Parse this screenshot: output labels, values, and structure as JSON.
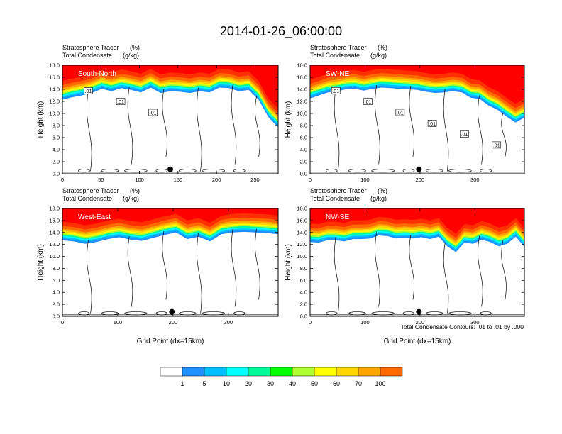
{
  "title": "2014-01-26_06:00:00",
  "footnote": "Total Condensate Contours: .01 to .01 by .000",
  "colors": {
    "colorbar": [
      "#ffffff",
      "#1e90ff",
      "#00bfff",
      "#00ffff",
      "#00fa9a",
      "#00ff00",
      "#adff2f",
      "#ffff00",
      "#ffd700",
      "#ffa500",
      "#ff6a00",
      "#ff3000",
      "#ff0000"
    ],
    "contour": "#000000",
    "marker": "#000000"
  },
  "colorbar_labels": [
    "1",
    "5",
    "10",
    "20",
    "30",
    "40",
    "50",
    "60",
    "70",
    "100"
  ],
  "chart_data": [
    {
      "type": "heatmap",
      "panel": "South-North",
      "subtitle_left": "Stratosphere Tracer",
      "subtitle_left2": "Total Condensate",
      "unit1": "(%)",
      "unit2": "(g/kg)",
      "ylabel": "Height (km)",
      "xlabel": "",
      "xlim": [
        0,
        280
      ],
      "ylim": [
        0,
        18
      ],
      "xticks": [
        0,
        50,
        100,
        150,
        200,
        250
      ],
      "yticks": [
        0.0,
        2.0,
        4.0,
        6.0,
        8.0,
        10.0,
        12.0,
        14.0,
        16.0,
        18.0
      ],
      "ytick_labels": [
        "0.0",
        "2.0",
        "4.0",
        "6.0",
        "8.0",
        "10.0",
        "12.0",
        "14.0",
        "16.0",
        "18.0"
      ],
      "marker_x": 140,
      "contour_labels": [
        ".01",
        ".01",
        ".01"
      ],
      "tropopause_km": [
        13.2,
        13.6,
        13.9,
        14.3,
        15.0,
        14.6,
        15.1,
        14.8,
        14.4,
        15.2,
        14.3,
        14.6,
        14.5,
        14.3,
        14.6,
        14.4,
        15.2,
        15.1,
        14.6,
        14.8,
        13.2,
        10.3,
        8.6
      ]
    },
    {
      "type": "heatmap",
      "panel": "SW-NE",
      "subtitle_left": "Stratosphere Tracer",
      "subtitle_left2": "Total Condensate",
      "unit1": "(%)",
      "unit2": "(g/kg)",
      "ylabel": "Height (km)",
      "xlabel": "",
      "xlim": [
        0,
        390
      ],
      "ylim": [
        0,
        18
      ],
      "xticks": [
        0,
        100,
        200,
        300
      ],
      "yticks": [
        0.0,
        2.0,
        4.0,
        6.0,
        8.0,
        10.0,
        12.0,
        14.0,
        16.0,
        18.0
      ],
      "ytick_labels": [
        "0.0",
        "2.0",
        "4.0",
        "6.0",
        "8.0",
        "10.0",
        "12.0",
        "14.0",
        "16.0",
        "18.0"
      ],
      "marker_x": 198,
      "contour_labels": [
        ".01",
        ".01",
        ".01",
        ".01",
        ".01",
        ".01"
      ],
      "tropopause_km": [
        13.4,
        13.9,
        14.4,
        14.6,
        14.9,
        15.0,
        14.7,
        15.0,
        15.2,
        15.1,
        15.0,
        14.9,
        14.8,
        14.5,
        14.3,
        14.4,
        14.6,
        14.4,
        13.5,
        13.3,
        12.2,
        11.5,
        10.4,
        9.4,
        10.2
      ]
    },
    {
      "type": "heatmap",
      "panel": "West-East",
      "subtitle_left": "Stratosphere Tracer",
      "subtitle_left2": "Total Condensate",
      "unit1": "(%)",
      "unit2": "(g/kg)",
      "ylabel": "Height (km)",
      "xlabel": "Grid Point (dx=15km)",
      "xlim": [
        0,
        390
      ],
      "ylim": [
        0,
        18
      ],
      "xticks": [
        0,
        100,
        200,
        300
      ],
      "yticks": [
        0.0,
        2.0,
        4.0,
        6.0,
        8.0,
        10.0,
        12.0,
        14.0,
        16.0,
        18.0
      ],
      "ytick_labels": [
        "0.0",
        "2.0",
        "4.0",
        "6.0",
        "8.0",
        "10.0",
        "12.0",
        "14.0",
        "16.0",
        "18.0"
      ],
      "marker_x": 198,
      "contour_labels": [],
      "tropopause_km": [
        13.6,
        13.4,
        13.0,
        13.3,
        13.8,
        14.1,
        13.7,
        13.5,
        14.0,
        14.5,
        14.9,
        13.8,
        14.2,
        13.4,
        14.6,
        14.9,
        15.0,
        14.9,
        14.8,
        14.6
      ]
    },
    {
      "type": "heatmap",
      "panel": "NW-SE",
      "subtitle_left": "Stratosphere Tracer",
      "subtitle_left2": "Total Condensate",
      "unit1": "(%)",
      "unit2": "(g/kg)",
      "ylabel": "Height (km)",
      "xlabel": "Grid Point (dx=15km)",
      "xlim": [
        0,
        390
      ],
      "ylim": [
        0,
        18
      ],
      "xticks": [
        0,
        100,
        200,
        300
      ],
      "yticks": [
        0.0,
        2.0,
        4.0,
        6.0,
        8.0,
        10.0,
        12.0,
        14.0,
        16.0,
        18.0
      ],
      "ytick_labels": [
        "0.0",
        "2.0",
        "4.0",
        "6.0",
        "8.0",
        "10.0",
        "12.0",
        "14.0",
        "16.0",
        "18.0"
      ],
      "marker_x": 198,
      "contour_labels": [],
      "tropopause_km": [
        13.3,
        13.2,
        13.6,
        13.6,
        13.4,
        13.8,
        13.8,
        13.9,
        14.4,
        14.3,
        13.9,
        14.0,
        13.9,
        14.1,
        13.8,
        14.2,
        12.6,
        11.6,
        13.2,
        13.0,
        13.7,
        13.3,
        12.6,
        13.0,
        14.2,
        12.5
      ]
    }
  ]
}
